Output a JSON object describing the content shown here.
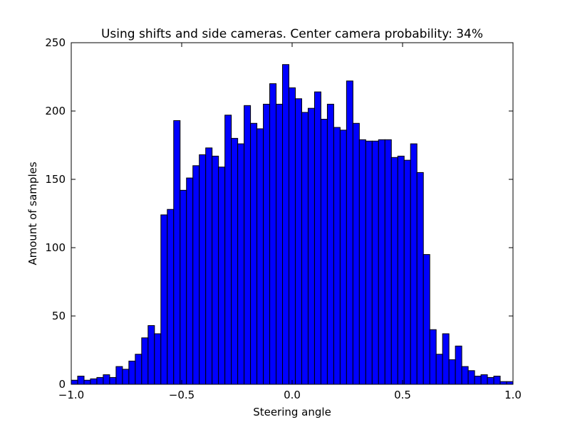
{
  "chart_data": {
    "type": "bar",
    "title": "Using shifts and side cameras. Center camera probability: 34%",
    "xlabel": "Steering angle",
    "ylabel": "Amount of samples",
    "xlim": [
      -1.0,
      1.0
    ],
    "ylim": [
      0,
      250
    ],
    "x_ticks": [
      -1.0,
      -0.5,
      0.0,
      0.5,
      1.0
    ],
    "x_tick_labels": [
      "−1.0",
      "−0.5",
      "0.0",
      "0.5",
      "1.0"
    ],
    "y_ticks": [
      0,
      50,
      100,
      150,
      200,
      250
    ],
    "y_tick_labels": [
      "0",
      "50",
      "100",
      "150",
      "200",
      "250"
    ],
    "bar_color": "#0000ff",
    "grid": false,
    "bin_start": -1.0,
    "bin_end": 1.0,
    "values": [
      3,
      6,
      3,
      4,
      5,
      7,
      5,
      13,
      11,
      17,
      22,
      34,
      43,
      37,
      124,
      128,
      193,
      142,
      151,
      160,
      168,
      173,
      167,
      159,
      197,
      180,
      176,
      204,
      191,
      187,
      205,
      220,
      205,
      234,
      217,
      209,
      199,
      202,
      214,
      194,
      205,
      188,
      186,
      222,
      191,
      179,
      178,
      178,
      179,
      179,
      166,
      167,
      164,
      176,
      155,
      95,
      40,
      22,
      37,
      18,
      28,
      13,
      10,
      6,
      7,
      5,
      6,
      2,
      2
    ]
  }
}
